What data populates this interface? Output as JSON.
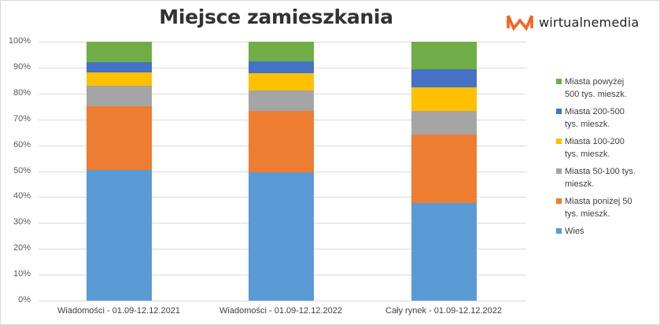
{
  "header": {
    "title": "Miejsce zamieszkania",
    "logo_text": "wirtualnemedia",
    "logo_color": "#F26522"
  },
  "y_axis": {
    "ticks": [
      "100%",
      "90%",
      "80%",
      "70%",
      "60%",
      "50%",
      "40%",
      "30%",
      "20%",
      "10%",
      "0%"
    ]
  },
  "x_axis": {
    "labels": [
      "Wiadomości - 01.09-12.12.2021",
      "Wiadomości - 01.09-12.12.2022",
      "Cały rynek - 01.09-12.12.2022"
    ]
  },
  "legend": {
    "items": [
      {
        "label": "Miasta powyżej 500 tys. mieszk.",
        "line1": "Miasta powyżej",
        "line2": "500 tys. mieszk.",
        "color": "#70AD47"
      },
      {
        "label": "Miasta 200-500 tys. mieszk.",
        "line1": "Miasta 200-500",
        "line2": "tys. mieszk.",
        "color": "#4472C4"
      },
      {
        "label": "Miasta 100-200 tys. mieszk.",
        "line1": "Miasta 100-200",
        "line2": "tys. mieszk.",
        "color": "#FFC000"
      },
      {
        "label": "Miasta 50-100 tys. mieszk.",
        "line1": "Miasta 50-100 tys.",
        "line2": "mieszk.",
        "color": "#A5A5A5"
      },
      {
        "label": "Miasta poniżej 50 tys. mieszk.",
        "line1": "Miasta poniżej 50",
        "line2": "tys. mieszk.",
        "color": "#ED7D31"
      },
      {
        "label": "Wieś",
        "line1": "Wieś",
        "line2": "",
        "color": "#5B9BD5"
      }
    ]
  },
  "chart_data": {
    "type": "bar",
    "stacked": "100%",
    "title": "Miejsce zamieszkania",
    "xlabel": "",
    "ylabel": "",
    "ylim": [
      0,
      100
    ],
    "y_ticks": [
      "0%",
      "10%",
      "20%",
      "30%",
      "40%",
      "50%",
      "60%",
      "70%",
      "80%",
      "90%",
      "100%"
    ],
    "grid": true,
    "legend_position": "right",
    "categories": [
      "Wiadomości - 01.09-12.12.2021",
      "Wiadomości - 01.09-12.12.2022",
      "Cały rynek - 01.09-12.12.2022"
    ],
    "series": [
      {
        "name": "Wieś",
        "color": "#5B9BD5",
        "values": [
          50.5,
          49.7,
          37.8
        ]
      },
      {
        "name": "Miasta poniżej 50 tys. mieszk.",
        "color": "#ED7D31",
        "values": [
          24.5,
          23.6,
          26.3
        ]
      },
      {
        "name": "Miasta 50-100 tys. mieszk.",
        "color": "#A5A5A5",
        "values": [
          8.1,
          7.8,
          9.3
        ]
      },
      {
        "name": "Miasta 100-200 tys. mieszk.",
        "color": "#FFC000",
        "values": [
          5.0,
          6.8,
          9.1
        ]
      },
      {
        "name": "Miasta 200-500 tys. mieszk.",
        "color": "#4472C4",
        "values": [
          4.0,
          4.4,
          6.8
        ]
      },
      {
        "name": "Miasta powyżej 500 tys. mieszk.",
        "color": "#70AD47",
        "values": [
          7.9,
          7.7,
          10.7
        ]
      }
    ]
  }
}
